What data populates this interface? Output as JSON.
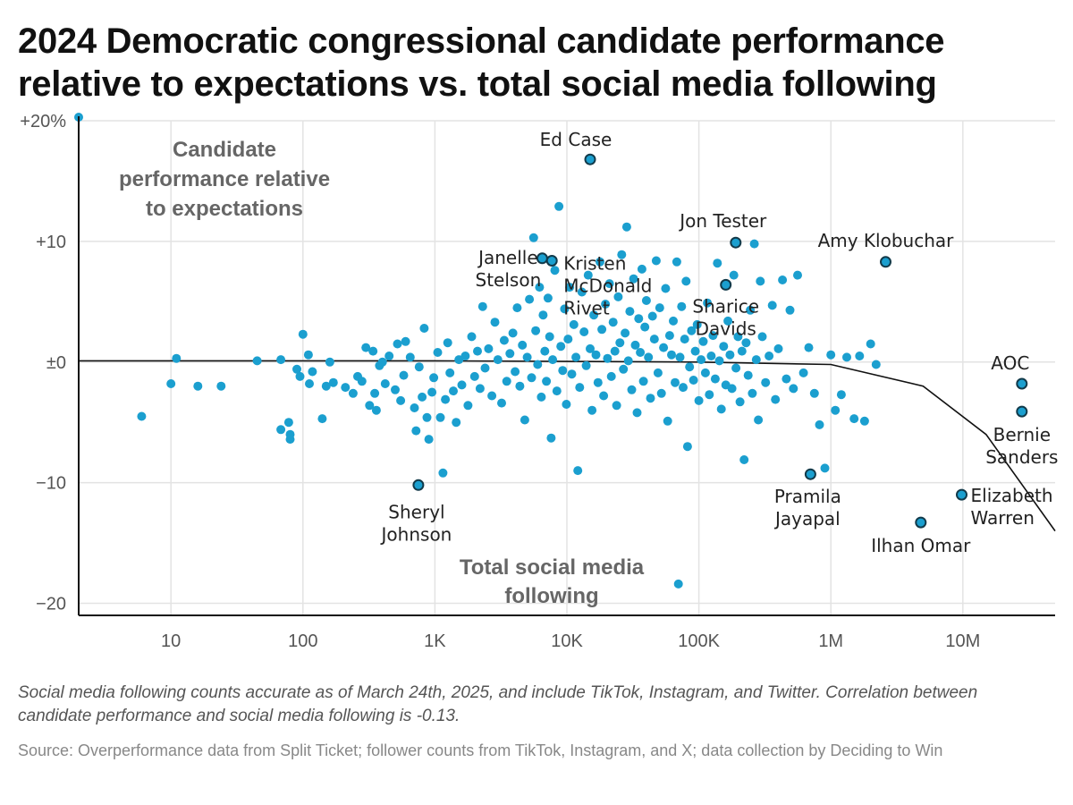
{
  "title": "2024 Democratic congressional candidate performance relative to expectations vs. total social media following",
  "note": "Social media following counts accurate as of March 24th, 2025, and include TikTok, Instagram, and Twitter. Correlation between candidate performance and social media following is -0.13.",
  "source": "Source: Overperformance data from Split Ticket; follower counts from TikTok, Instagram, and X; data collection by Deciding to Win",
  "colors": {
    "point": "#1b9fcf",
    "point_stroke": "#123a4a",
    "grid": "#e3e3e3",
    "trend": "#111111"
  },
  "chart_data": {
    "type": "scatter",
    "xscale": "log",
    "xlim": [
      2,
      50000000
    ],
    "ylim": [
      -21,
      20
    ],
    "grid": true,
    "ylabel_lines": [
      "Candidate",
      "performance relative",
      "to expectations"
    ],
    "xlabel_lines": [
      "Total social media",
      "following"
    ],
    "yticks": [
      {
        "value": 20,
        "label": "+20%"
      },
      {
        "value": 10,
        "label": "+10"
      },
      {
        "value": 0,
        "label": "±0"
      },
      {
        "value": -10,
        "label": "−10"
      },
      {
        "value": -20,
        "label": "−20"
      }
    ],
    "xticks": [
      {
        "value": 10,
        "label": "10"
      },
      {
        "value": 100,
        "label": "100"
      },
      {
        "value": 1000,
        "label": "1K"
      },
      {
        "value": 10000,
        "label": "10K"
      },
      {
        "value": 100000,
        "label": "100K"
      },
      {
        "value": 1000000,
        "label": "1M"
      },
      {
        "value": 10000000,
        "label": "10M"
      }
    ],
    "trend": [
      [
        2,
        0.1
      ],
      [
        1000,
        0.1
      ],
      [
        100000,
        0
      ],
      [
        1000000,
        -0.2
      ],
      [
        5000000,
        -2
      ],
      [
        15000000,
        -6
      ],
      [
        50000000,
        -14
      ]
    ],
    "labeled": [
      {
        "label": "Ed Case",
        "x": 15000,
        "y": 16.8
      },
      {
        "label": "Jon Tester",
        "x": 190000,
        "y": 9.9
      },
      {
        "label": "Amy Klobuchar",
        "x": 2600000,
        "y": 8.3
      },
      {
        "label": "Janelle Stelson",
        "x": 6500,
        "y": 8.6
      },
      {
        "label": "Kristen McDonald Rivet",
        "x": 7700,
        "y": 8.4
      },
      {
        "label": "Sharice Davids",
        "x": 160000,
        "y": 6.4
      },
      {
        "label": "AOC",
        "x": 28000000,
        "y": -1.8
      },
      {
        "label": "Bernie Sanders",
        "x": 28000000,
        "y": -4.1
      },
      {
        "label": "Elizabeth Warren",
        "x": 9800000,
        "y": -11
      },
      {
        "label": "Ilhan Omar",
        "x": 4800000,
        "y": -13.3
      },
      {
        "label": "Pramila Jayapal",
        "x": 700000,
        "y": -9.3
      },
      {
        "label": "Sheryl Johnson",
        "x": 750,
        "y": -10.2
      }
    ],
    "points": [
      [
        2,
        20.3
      ],
      [
        6,
        -4.5
      ],
      [
        10,
        -1.8
      ],
      [
        11,
        0.3
      ],
      [
        16,
        -2
      ],
      [
        24,
        -2
      ],
      [
        45,
        0.1
      ],
      [
        68,
        0.2
      ],
      [
        68,
        -5.6
      ],
      [
        78,
        -5
      ],
      [
        80,
        -6.4
      ],
      [
        80,
        -6
      ],
      [
        90,
        -0.6
      ],
      [
        95,
        -1.2
      ],
      [
        100,
        2.3
      ],
      [
        110,
        0.6
      ],
      [
        112,
        -1.8
      ],
      [
        118,
        -0.8
      ],
      [
        140,
        -4.7
      ],
      [
        150,
        -2
      ],
      [
        160,
        0
      ],
      [
        170,
        -1.7
      ],
      [
        210,
        -2.1
      ],
      [
        240,
        -2.6
      ],
      [
        260,
        -1.2
      ],
      [
        280,
        -1.6
      ],
      [
        300,
        1.2
      ],
      [
        320,
        -3.6
      ],
      [
        340,
        0.9
      ],
      [
        350,
        -2.6
      ],
      [
        360,
        -4
      ],
      [
        380,
        -0.3
      ],
      [
        400,
        0
      ],
      [
        420,
        -1.8
      ],
      [
        450,
        0.5
      ],
      [
        500,
        -2.3
      ],
      [
        520,
        1.5
      ],
      [
        550,
        -3.2
      ],
      [
        580,
        -1.1
      ],
      [
        600,
        1.7
      ],
      [
        650,
        0.4
      ],
      [
        700,
        -3.8
      ],
      [
        720,
        -5.7
      ],
      [
        760,
        -0.4
      ],
      [
        800,
        -2.9
      ],
      [
        830,
        2.8
      ],
      [
        870,
        -4.6
      ],
      [
        900,
        -6.4
      ],
      [
        950,
        -2.5
      ],
      [
        980,
        -1.3
      ],
      [
        1050,
        0.8
      ],
      [
        1100,
        -4.6
      ],
      [
        1150,
        -9.2
      ],
      [
        1200,
        -3.1
      ],
      [
        1250,
        1.6
      ],
      [
        1300,
        -0.9
      ],
      [
        1380,
        -2.4
      ],
      [
        1450,
        -5
      ],
      [
        1520,
        0.2
      ],
      [
        1600,
        -1.9
      ],
      [
        1700,
        0.5
      ],
      [
        1780,
        -3.6
      ],
      [
        1900,
        2.1
      ],
      [
        2000,
        -1.2
      ],
      [
        2100,
        0.9
      ],
      [
        2200,
        -2.2
      ],
      [
        2300,
        4.6
      ],
      [
        2400,
        -0.5
      ],
      [
        2550,
        1.1
      ],
      [
        2700,
        -2.8
      ],
      [
        2850,
        3.3
      ],
      [
        3000,
        0.2
      ],
      [
        3200,
        -3.4
      ],
      [
        3350,
        1.8
      ],
      [
        3500,
        -1.6
      ],
      [
        3700,
        0.7
      ],
      [
        3900,
        2.4
      ],
      [
        4050,
        -0.8
      ],
      [
        4200,
        4.5
      ],
      [
        4400,
        -2
      ],
      [
        4600,
        1.4
      ],
      [
        4800,
        -4.8
      ],
      [
        5000,
        0.4
      ],
      [
        5200,
        5.2
      ],
      [
        5400,
        -1.3
      ],
      [
        5600,
        10.3
      ],
      [
        5800,
        2.6
      ],
      [
        6000,
        -0.2
      ],
      [
        6200,
        6.2
      ],
      [
        6400,
        -2.9
      ],
      [
        6600,
        3.9
      ],
      [
        6800,
        0.9
      ],
      [
        7000,
        -1.6
      ],
      [
        7200,
        5.3
      ],
      [
        7400,
        2.1
      ],
      [
        7600,
        -6.3
      ],
      [
        7800,
        0.2
      ],
      [
        8100,
        7.6
      ],
      [
        8400,
        -2.4
      ],
      [
        8700,
        12.9
      ],
      [
        9000,
        1.3
      ],
      [
        9300,
        -0.7
      ],
      [
        9600,
        4.4
      ],
      [
        9900,
        -3.5
      ],
      [
        10200,
        1.9
      ],
      [
        10500,
        6.2
      ],
      [
        10900,
        -1
      ],
      [
        11300,
        3.1
      ],
      [
        11700,
        0.4
      ],
      [
        12100,
        -9
      ],
      [
        12500,
        -2.1
      ],
      [
        13000,
        5.8
      ],
      [
        13500,
        2.5
      ],
      [
        14000,
        -0.3
      ],
      [
        14500,
        7.2
      ],
      [
        15000,
        1.1
      ],
      [
        15500,
        -4
      ],
      [
        16000,
        3.9
      ],
      [
        16600,
        0.6
      ],
      [
        17200,
        -1.7
      ],
      [
        17800,
        8.3
      ],
      [
        18400,
        2.7
      ],
      [
        19000,
        -2.8
      ],
      [
        19600,
        4.8
      ],
      [
        20300,
        0.3
      ],
      [
        21000,
        6.5
      ],
      [
        21700,
        -1.2
      ],
      [
        22400,
        3.3
      ],
      [
        23100,
        0.9
      ],
      [
        23800,
        -3.6
      ],
      [
        24500,
        5.4
      ],
      [
        25200,
        1.6
      ],
      [
        26000,
        8.9
      ],
      [
        26800,
        -0.6
      ],
      [
        27600,
        2.4
      ],
      [
        28400,
        11.2
      ],
      [
        29200,
        0.1
      ],
      [
        30000,
        4.2
      ],
      [
        31000,
        -2.3
      ],
      [
        32000,
        6.9
      ],
      [
        33000,
        1.4
      ],
      [
        34000,
        -4.2
      ],
      [
        35000,
        3.6
      ],
      [
        36000,
        0.8
      ],
      [
        37000,
        7.7
      ],
      [
        38000,
        -1.6
      ],
      [
        39000,
        2.9
      ],
      [
        40000,
        5.1
      ],
      [
        41500,
        0.4
      ],
      [
        43000,
        -3
      ],
      [
        44500,
        3.8
      ],
      [
        46000,
        1.9
      ],
      [
        47500,
        8.4
      ],
      [
        49000,
        -0.9
      ],
      [
        50500,
        4.5
      ],
      [
        52000,
        -2.6
      ],
      [
        54000,
        1.2
      ],
      [
        56000,
        6.1
      ],
      [
        58000,
        -4.9
      ],
      [
        60000,
        2.2
      ],
      [
        62000,
        0.6
      ],
      [
        64000,
        3.4
      ],
      [
        66000,
        -1.7
      ],
      [
        68000,
        8.3
      ],
      [
        70000,
        -18.4
      ],
      [
        72000,
        0.4
      ],
      [
        74000,
        4.6
      ],
      [
        76000,
        -2.1
      ],
      [
        78000,
        1.9
      ],
      [
        80000,
        6.7
      ],
      [
        82000,
        -7
      ],
      [
        85000,
        -0.4
      ],
      [
        88000,
        2.6
      ],
      [
        91000,
        -1.5
      ],
      [
        94000,
        0.9
      ],
      [
        97000,
        3.1
      ],
      [
        100000,
        -3.2
      ],
      [
        104000,
        0.2
      ],
      [
        108000,
        1.7
      ],
      [
        112000,
        -0.9
      ],
      [
        116000,
        4.9
      ],
      [
        120000,
        -2.7
      ],
      [
        124000,
        0.5
      ],
      [
        128000,
        2.2
      ],
      [
        133000,
        -1.4
      ],
      [
        138000,
        8.2
      ],
      [
        143000,
        0.1
      ],
      [
        148000,
        -3.9
      ],
      [
        154000,
        1.3
      ],
      [
        160000,
        -1.9
      ],
      [
        166000,
        3.4
      ],
      [
        172000,
        0.6
      ],
      [
        178000,
        -2.2
      ],
      [
        184000,
        7.2
      ],
      [
        191000,
        -0.5
      ],
      [
        198000,
        2.1
      ],
      [
        205000,
        -3.3
      ],
      [
        212000,
        0.9
      ],
      [
        220000,
        -8.1
      ],
      [
        228000,
        1.6
      ],
      [
        236000,
        -1.1
      ],
      [
        245000,
        4.3
      ],
      [
        254000,
        -2.6
      ],
      [
        263000,
        9.8
      ],
      [
        272000,
        0.2
      ],
      [
        282000,
        -4.8
      ],
      [
        292000,
        6.7
      ],
      [
        302000,
        2.1
      ],
      [
        320000,
        -1.7
      ],
      [
        340000,
        0.5
      ],
      [
        360000,
        4.7
      ],
      [
        380000,
        -3.1
      ],
      [
        400000,
        1.1
      ],
      [
        430000,
        6.8
      ],
      [
        460000,
        -1.4
      ],
      [
        490000,
        4.3
      ],
      [
        520000,
        -2.2
      ],
      [
        560000,
        7.2
      ],
      [
        620000,
        -0.9
      ],
      [
        680000,
        1.2
      ],
      [
        750000,
        -2.6
      ],
      [
        820000,
        -5.2
      ],
      [
        900000,
        -8.8
      ],
      [
        1000000,
        0.6
      ],
      [
        1080000,
        -4
      ],
      [
        1200000,
        -2.7
      ],
      [
        1320000,
        0.4
      ],
      [
        1500000,
        -4.7
      ],
      [
        1650000,
        0.5
      ],
      [
        1800000,
        -4.9
      ],
      [
        2000000,
        1.5
      ],
      [
        2200000,
        -0.2
      ]
    ]
  }
}
